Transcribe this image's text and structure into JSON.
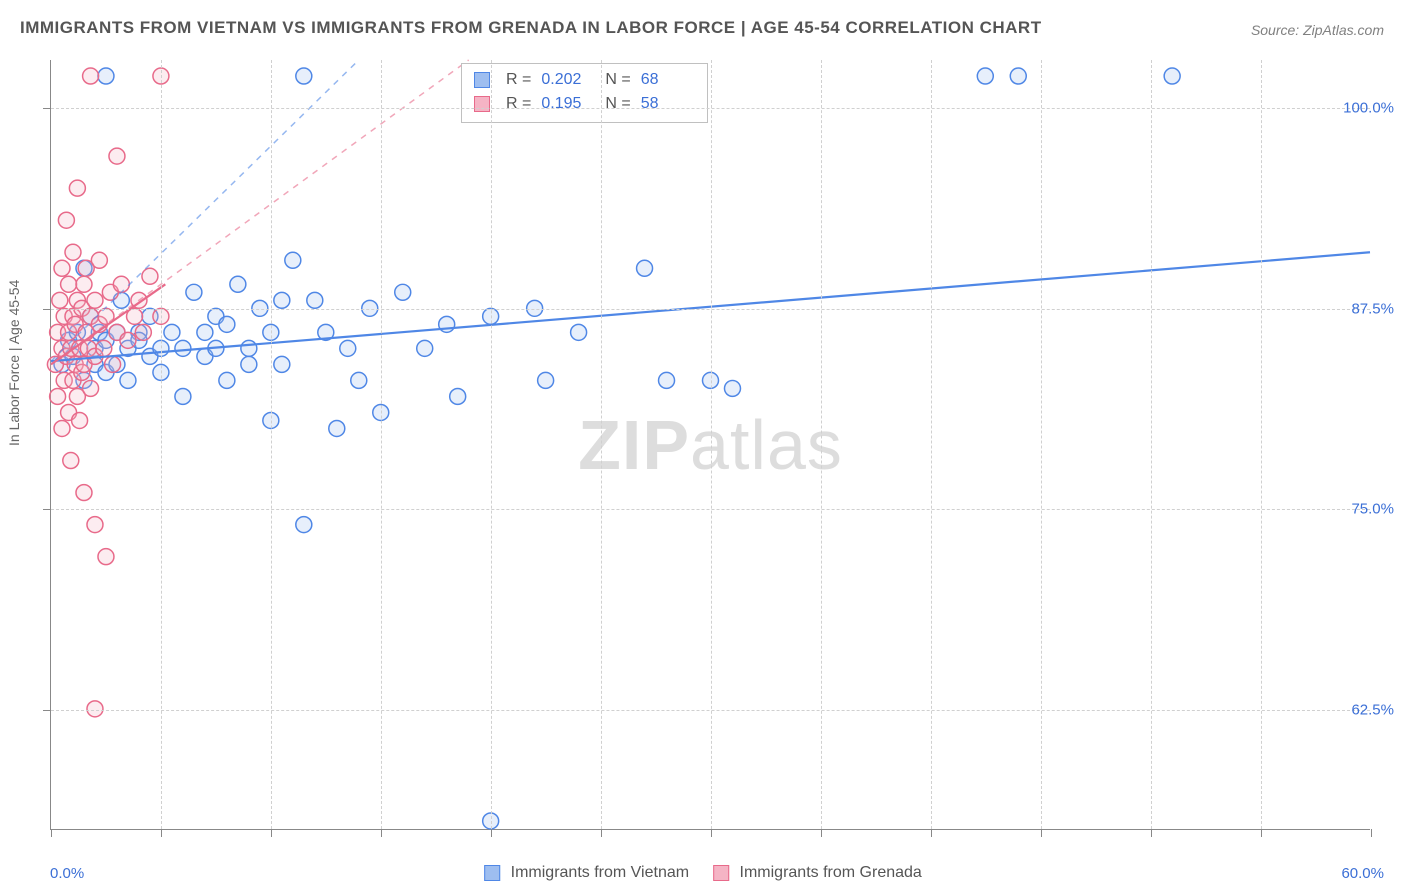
{
  "title": "IMMIGRANTS FROM VIETNAM VS IMMIGRANTS FROM GRENADA IN LABOR FORCE | AGE 45-54 CORRELATION CHART",
  "source": "Source: ZipAtlas.com",
  "watermark_bold": "ZIP",
  "watermark_rest": "atlas",
  "y_axis_label": "In Labor Force | Age 45-54",
  "chart": {
    "type": "scatter",
    "background_color": "#ffffff",
    "grid_color": "#d0d0d0",
    "axis_color": "#888888",
    "tick_label_color": "#3b6fd6",
    "axis_label_color": "#666666",
    "xlim": [
      0,
      60
    ],
    "ylim": [
      55,
      103
    ],
    "x_tick_positions": [
      0,
      5,
      10,
      15,
      20,
      25,
      30,
      35,
      40,
      45,
      50,
      55,
      60
    ],
    "x_grid_positions": [
      5,
      10,
      15,
      20,
      25,
      30,
      35,
      40,
      45,
      50,
      55
    ],
    "x_min_label": "0.0%",
    "x_max_label": "60.0%",
    "y_ticks": [
      {
        "v": 62.5,
        "label": "62.5%"
      },
      {
        "v": 75.0,
        "label": "75.0%"
      },
      {
        "v": 87.5,
        "label": "87.5%"
      },
      {
        "v": 100.0,
        "label": "100.0%"
      }
    ],
    "marker_radius": 8,
    "marker_stroke_width": 1.5,
    "marker_fill_opacity": 0.25,
    "trend_line_width": 2.2,
    "series": [
      {
        "id": "vietnam",
        "label": "Immigrants from Vietnam",
        "color": "#4f87e6",
        "fill": "#9ebef0",
        "R": "0.202",
        "N": "68",
        "trend": {
          "x1": 0,
          "y1": 84.2,
          "x2": 60,
          "y2": 91.0
        },
        "trend_dashed": {
          "x1": 0,
          "y1": 84.2,
          "x2": 14,
          "y2": 103
        },
        "points": [
          [
            0.5,
            84
          ],
          [
            0.8,
            85.5
          ],
          [
            1.0,
            84.5
          ],
          [
            1.2,
            86
          ],
          [
            1.5,
            83
          ],
          [
            1.5,
            90
          ],
          [
            1.8,
            87
          ],
          [
            2.0,
            84
          ],
          [
            2.0,
            85
          ],
          [
            2.2,
            86
          ],
          [
            2.5,
            85.5
          ],
          [
            2.5,
            83.5
          ],
          [
            2.5,
            102
          ],
          [
            3.0,
            86
          ],
          [
            3.0,
            84
          ],
          [
            3.2,
            88
          ],
          [
            3.5,
            85
          ],
          [
            3.5,
            83
          ],
          [
            4.0,
            86
          ],
          [
            4.0,
            85.5
          ],
          [
            4.5,
            84.5
          ],
          [
            4.5,
            87
          ],
          [
            5.0,
            85
          ],
          [
            5.0,
            83.5
          ],
          [
            5.5,
            86
          ],
          [
            6.0,
            85
          ],
          [
            6.0,
            82
          ],
          [
            6.5,
            88.5
          ],
          [
            7.0,
            86
          ],
          [
            7.0,
            84.5
          ],
          [
            7.5,
            87
          ],
          [
            7.5,
            85
          ],
          [
            8.0,
            83
          ],
          [
            8.0,
            86.5
          ],
          [
            8.5,
            89
          ],
          [
            9.0,
            85
          ],
          [
            9.0,
            84
          ],
          [
            9.5,
            87.5
          ],
          [
            10.0,
            86
          ],
          [
            10.0,
            80.5
          ],
          [
            10.5,
            88
          ],
          [
            10.5,
            84
          ],
          [
            11.0,
            90.5
          ],
          [
            11.5,
            102
          ],
          [
            11.5,
            74
          ],
          [
            12.0,
            88
          ],
          [
            12.5,
            86
          ],
          [
            13.0,
            80
          ],
          [
            13.5,
            85
          ],
          [
            14.0,
            83
          ],
          [
            14.5,
            87.5
          ],
          [
            15.0,
            81
          ],
          [
            16.0,
            88.5
          ],
          [
            17.0,
            85
          ],
          [
            18.0,
            86.5
          ],
          [
            18.5,
            82
          ],
          [
            20.0,
            87
          ],
          [
            20.0,
            55.5
          ],
          [
            22.0,
            87.5
          ],
          [
            22.5,
            83
          ],
          [
            24.0,
            86
          ],
          [
            27.0,
            90
          ],
          [
            28.0,
            83
          ],
          [
            30.0,
            83
          ],
          [
            31.0,
            82.5
          ],
          [
            42.5,
            102
          ],
          [
            44.0,
            102
          ],
          [
            51.0,
            102
          ]
        ]
      },
      {
        "id": "grenada",
        "label": "Immigrants from Grenada",
        "color": "#e86a8a",
        "fill": "#f5b4c5",
        "R": "0.195",
        "N": "58",
        "trend": {
          "x1": 0,
          "y1": 84.0,
          "x2": 5.2,
          "y2": 89.0
        },
        "trend_dashed": {
          "x1": 0,
          "y1": 84.0,
          "x2": 19,
          "y2": 103
        },
        "points": [
          [
            0.2,
            84
          ],
          [
            0.3,
            86
          ],
          [
            0.3,
            82
          ],
          [
            0.4,
            88
          ],
          [
            0.5,
            85
          ],
          [
            0.5,
            80
          ],
          [
            0.5,
            90
          ],
          [
            0.6,
            83
          ],
          [
            0.6,
            87
          ],
          [
            0.7,
            84.5
          ],
          [
            0.7,
            93
          ],
          [
            0.8,
            86
          ],
          [
            0.8,
            81
          ],
          [
            0.8,
            89
          ],
          [
            0.9,
            85
          ],
          [
            0.9,
            78
          ],
          [
            1.0,
            87
          ],
          [
            1.0,
            83
          ],
          [
            1.0,
            91
          ],
          [
            1.1,
            84
          ],
          [
            1.1,
            86.5
          ],
          [
            1.2,
            88
          ],
          [
            1.2,
            82
          ],
          [
            1.2,
            95
          ],
          [
            1.3,
            85
          ],
          [
            1.3,
            80.5
          ],
          [
            1.4,
            87.5
          ],
          [
            1.4,
            83.5
          ],
          [
            1.5,
            89
          ],
          [
            1.5,
            84
          ],
          [
            1.5,
            76
          ],
          [
            1.6,
            86
          ],
          [
            1.6,
            90
          ],
          [
            1.7,
            85
          ],
          [
            1.8,
            87
          ],
          [
            1.8,
            82.5
          ],
          [
            1.8,
            102
          ],
          [
            2.0,
            88
          ],
          [
            2.0,
            84.5
          ],
          [
            2.0,
            74
          ],
          [
            2.0,
            62.5
          ],
          [
            2.2,
            86.5
          ],
          [
            2.2,
            90.5
          ],
          [
            2.4,
            85
          ],
          [
            2.5,
            87
          ],
          [
            2.5,
            72
          ],
          [
            2.7,
            88.5
          ],
          [
            2.8,
            84
          ],
          [
            3.0,
            86
          ],
          [
            3.0,
            97
          ],
          [
            3.2,
            89
          ],
          [
            3.5,
            85.5
          ],
          [
            3.8,
            87
          ],
          [
            4.0,
            88
          ],
          [
            4.2,
            86
          ],
          [
            4.5,
            89.5
          ],
          [
            5.0,
            87
          ],
          [
            5.0,
            102
          ]
        ]
      }
    ],
    "top_legend": {
      "border_color": "#c0c0c0",
      "R_label": "R =",
      "N_label": "N ="
    },
    "bottom_legend_font_size": 16
  }
}
